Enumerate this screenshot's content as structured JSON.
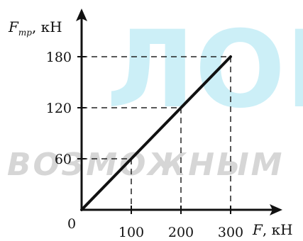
{
  "watermark": {
    "big": "ЛОВ",
    "small": "ВОЗМОЖНЫМ"
  },
  "chart_data": {
    "type": "line",
    "title": "",
    "xlabel": {
      "symbol": "F",
      "unit": ", кН"
    },
    "ylabel": {
      "symbol": "F",
      "subscript": "тр",
      "unit": ", кН"
    },
    "origin_label": "0",
    "x": [
      0,
      100,
      200,
      300
    ],
    "series": [
      {
        "values": [
          0,
          60,
          120,
          180
        ]
      }
    ],
    "xticks": [
      100,
      200,
      300
    ],
    "yticks": [
      60,
      120,
      180
    ],
    "xlim": [
      0,
      300
    ],
    "ylim": [
      0,
      180
    ],
    "grid": "dashed guide lines at tick values",
    "colors": {
      "line": "#111111",
      "guides": "#222222",
      "axes": "#111111",
      "watermark_big": "#8fdcef",
      "watermark_small": "#c9c9c9"
    }
  }
}
